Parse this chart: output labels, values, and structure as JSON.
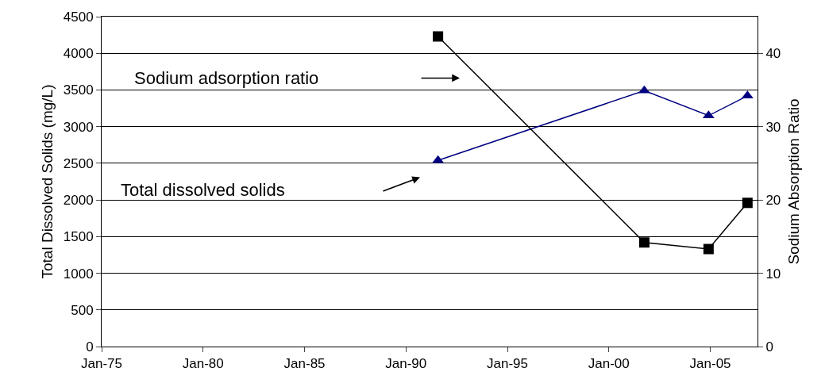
{
  "chart_data": {
    "type": "line",
    "ylabel": "Total Dissolved Solids (mg/L)",
    "y2label": "Sodium Absorption Ratio",
    "annotations": [
      "Sodium adsorption ratio",
      "Total dissolved solids"
    ],
    "series": [
      {
        "name": null,
        "color": "#000080",
        "marker": "triangle",
        "x": [
          "1991-08",
          "2001-10",
          "2004-12",
          "2006-11"
        ],
        "values": [
          2540,
          3490,
          3150,
          3420
        ]
      },
      {
        "name": null,
        "axis": "y2",
        "color": "#000000",
        "marker": "square",
        "x": [
          "1991-08",
          "2001-10",
          "2004-12",
          "2006-11"
        ],
        "values": [
          42.3,
          14.2,
          13.3,
          19.6
        ]
      }
    ],
    "xlim": [
      "1975-01",
      "2007-05"
    ],
    "xticks": [
      {
        "value": "1975-01",
        "label": "Jan-75"
      },
      {
        "value": "1980-01",
        "label": "Jan-80"
      },
      {
        "value": "1985-01",
        "label": "Jan-85"
      },
      {
        "value": "1990-01",
        "label": "Jan-90"
      },
      {
        "value": "1995-01",
        "label": "Jan-95"
      },
      {
        "value": "2000-01",
        "label": "Jan-00"
      },
      {
        "value": "2005-01",
        "label": "Jan-05"
      }
    ],
    "ylim": [
      0,
      4500
    ],
    "yticks": [
      0,
      500,
      1000,
      1500,
      2000,
      2500,
      3000,
      3500,
      4000,
      4500
    ],
    "y2lim": [
      0,
      45
    ],
    "y2ticks": [
      0,
      10,
      20,
      30,
      40
    ],
    "grid": "y"
  }
}
